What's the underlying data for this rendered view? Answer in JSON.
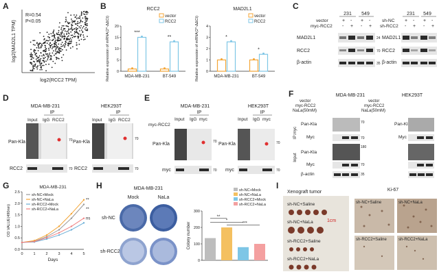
{
  "panels": {
    "A": "A",
    "B": "B",
    "C": "C",
    "D": "D",
    "E": "E",
    "F": "F",
    "G": "G",
    "H": "H",
    "I": "I"
  },
  "panelA": {
    "r_text": "R=0.54",
    "p_text": "P<0.05",
    "xlabel": "log2(RCC2 TPM)",
    "ylabel": "log2(MAD2L1 TPM)"
  },
  "chart_data": [
    {
      "type": "bar",
      "title": "RCC2",
      "ylabel": "Relative expression of mRNA(2^-ΔΔCt)",
      "categories": [
        "MDA-MB-231",
        "BT-549"
      ],
      "ylim": [
        0,
        20
      ],
      "yticks": [
        0,
        5,
        10,
        15,
        20
      ],
      "series": [
        {
          "name": "vector",
          "values": [
            1,
            1
          ],
          "color": "#f4a535"
        },
        {
          "name": "RCC2",
          "values": [
            15,
            13
          ],
          "color": "#7ec6e6"
        }
      ],
      "significance": [
        "***",
        "**"
      ]
    },
    {
      "type": "bar",
      "title": "MAD2L1",
      "ylabel": "Relative expression of mRNA(2^-ΔΔCt)",
      "categories": [
        "MDA-MB-231",
        "BT-549"
      ],
      "ylim": [
        0,
        4
      ],
      "yticks": [
        0,
        1,
        2,
        3,
        4
      ],
      "series": [
        {
          "name": "vector",
          "values": [
            1,
            1
          ],
          "color": "#f4a535"
        },
        {
          "name": "RCC2",
          "values": [
            2.6,
            1.5
          ],
          "color": "#7ec6e6"
        }
      ],
      "significance": [
        "*",
        "*"
      ]
    },
    {
      "type": "line",
      "title": "MDA-MB-231",
      "xlabel": "Days",
      "ylabel": "OD VALUE(490nm)",
      "x": [
        0,
        1,
        2,
        3,
        4,
        5
      ],
      "ylim": [
        0,
        2.5
      ],
      "yticks": [
        0.0,
        0.5,
        1.0,
        1.5,
        2.0,
        2.5
      ],
      "series": [
        {
          "name": "sh-NC+Mock",
          "values": [
            0.3,
            0.35,
            0.55,
            0.85,
            1.35,
            1.95
          ],
          "color": "#999999"
        },
        {
          "name": "sh-NC+NaLa",
          "values": [
            0.3,
            0.38,
            0.62,
            1.0,
            1.55,
            2.15
          ],
          "color": "#f4a535"
        },
        {
          "name": "sh-RCC2+Mock",
          "values": [
            0.3,
            0.32,
            0.45,
            0.62,
            0.85,
            1.15
          ],
          "color": "#6aaed6"
        },
        {
          "name": "sh-RCC2+NaLa",
          "values": [
            0.3,
            0.34,
            0.5,
            0.72,
            1.0,
            1.35
          ],
          "color": "#f08080"
        }
      ],
      "annotations": [
        "**",
        "**",
        "ns"
      ]
    },
    {
      "type": "bar",
      "title": "",
      "ylabel": "Colony number",
      "categories": [
        "sh-NC+Mock",
        "sh-NC+NaLa",
        "sh-RCC2+Mock",
        "sh-RCC2+NaLa"
      ],
      "ylim": [
        0,
        300
      ],
      "yticks": [
        0,
        100,
        200,
        300
      ],
      "series": [
        {
          "name": "Colony number",
          "values": [
            135,
            200,
            80,
            100
          ],
          "colors": [
            "#bdbdbd",
            "#f4c060",
            "#7ec6e6",
            "#f4a0a0"
          ]
        }
      ],
      "significance": [
        "**",
        "*",
        "***"
      ]
    }
  ],
  "panelC": {
    "cells": [
      "231",
      "549"
    ],
    "left_rows": [
      "vector",
      "myc-RCC2"
    ],
    "right_rows": [
      "sh-NC",
      "sh-RCC2"
    ],
    "bands": [
      "MAD2L1",
      "RCC2",
      "β-actin"
    ],
    "marks": [
      "24",
      "70",
      "35"
    ],
    "plus": "+",
    "minus": "-"
  },
  "panelD": {
    "cells": [
      "MDA-MB-231",
      "HEK293T"
    ],
    "ip": "IP",
    "lanes": [
      "Input",
      "IgG",
      "RCC2"
    ],
    "bands": [
      "Pan-Kla",
      "RCC2"
    ],
    "marks": [
      "70",
      "70"
    ]
  },
  "panelE": {
    "cells": [
      "MDA-MB-231",
      "HEK293T"
    ],
    "ip": "IP",
    "lanes": [
      "Input",
      "IgG",
      "myc"
    ],
    "row": "myc-RCC2",
    "bands": [
      "Pan-Kla",
      "myc"
    ],
    "marks": [
      "70",
      "70"
    ]
  },
  "panelF": {
    "cells": [
      "MDA-MB-231",
      "HEK293T"
    ],
    "rows": [
      "vector",
      "myc-RCC2",
      "NaLa(50mM)"
    ],
    "ip": "IP:myc",
    "input": "Input",
    "bands": [
      "Pan-Kla",
      "Myc",
      "Pan-Kla",
      "Myc",
      "β-actin"
    ],
    "marks": [
      "70",
      "70",
      "180",
      "70",
      "35"
    ]
  },
  "panelH": {
    "title": "MDA-MB-231",
    "cols": [
      "Mock",
      "NaLa"
    ],
    "rows": [
      "sh-NC",
      "sh-RCC2"
    ]
  },
  "panelI": {
    "title": "Xenograft tumor",
    "groups": [
      "sh-NC+Saline",
      "sh-NC+NaLa",
      "sh-RCC2+Saline",
      "sh-RCC2+NaLa"
    ],
    "scale": "1cm",
    "ki67": "Ki-67",
    "ihc_labels": [
      "sh-NC+Saline",
      "sh-NC+NaLa",
      "sh-RCC2+Saline",
      "sh-RCC2+NaLa"
    ]
  }
}
